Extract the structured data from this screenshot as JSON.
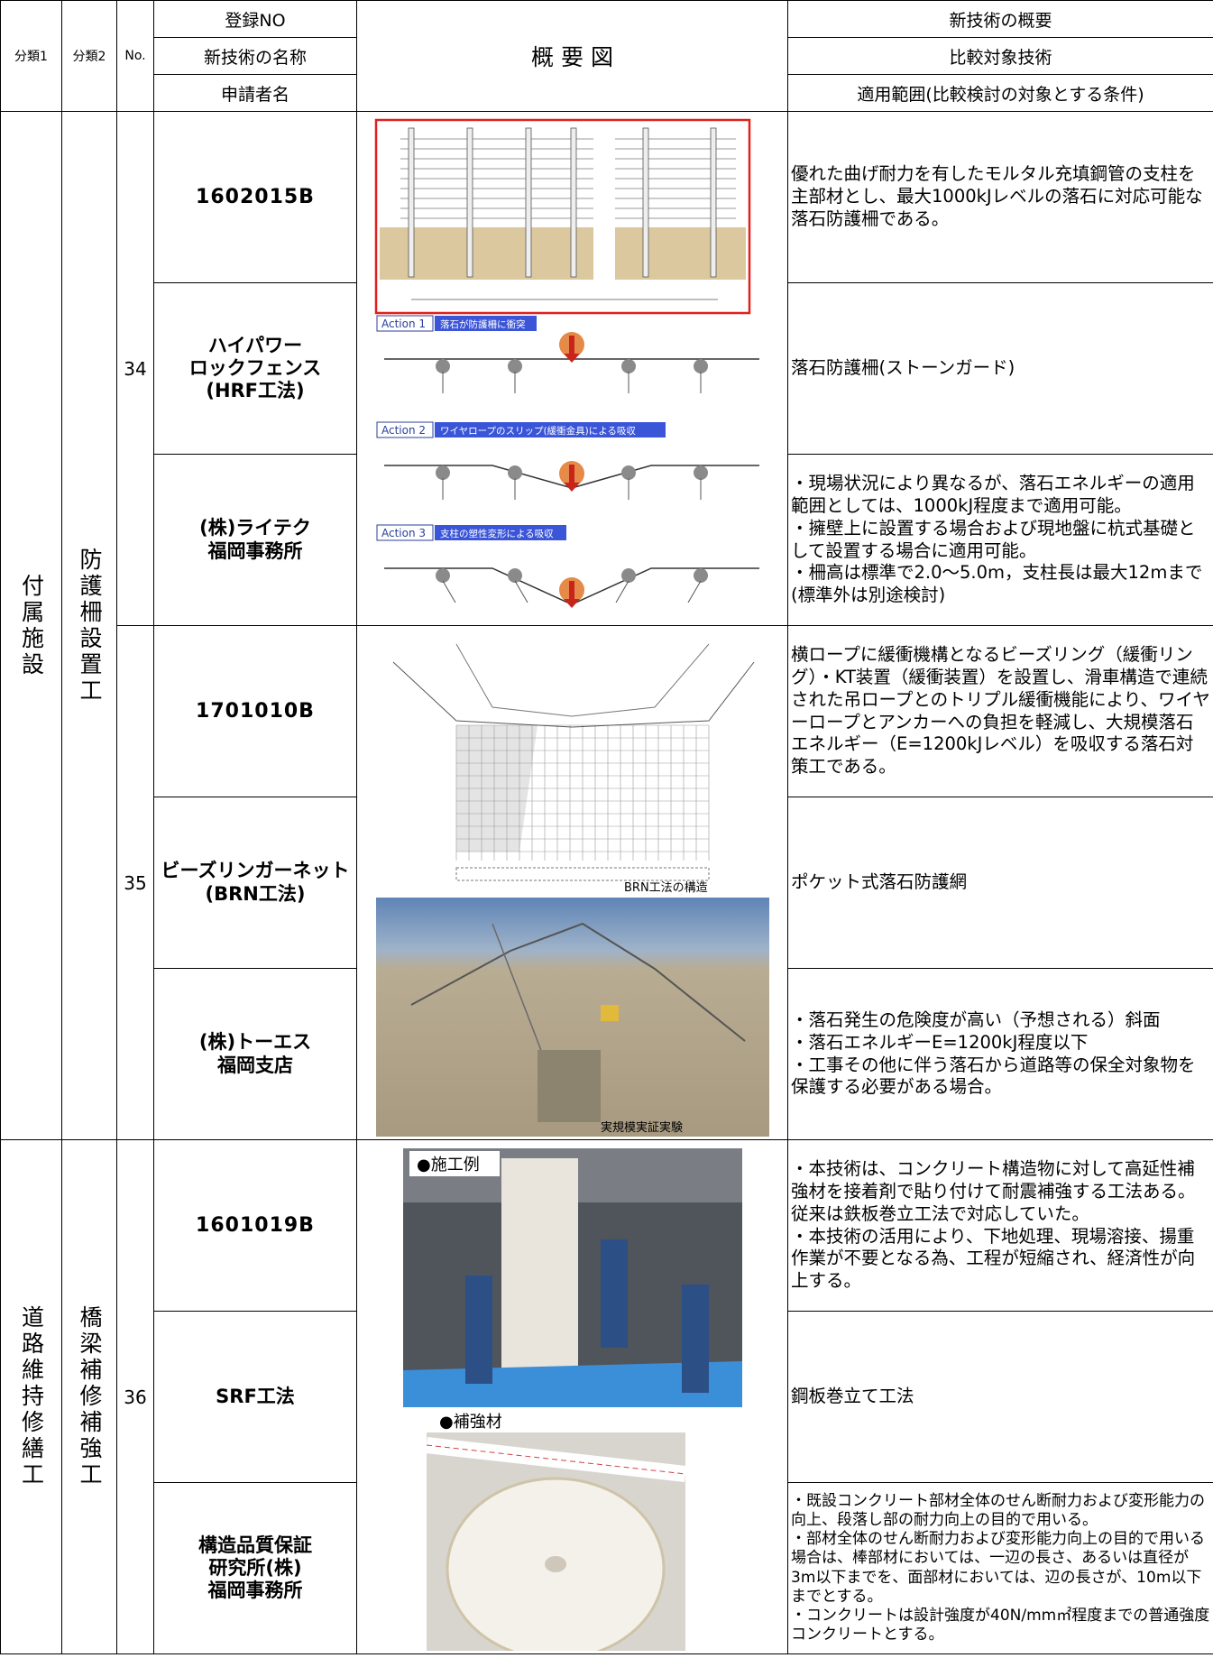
{
  "header": {
    "cat1": "分類1",
    "cat2": "分類2",
    "no": "No.",
    "reg_no": "登録NO",
    "name": "新技術の名称",
    "applicant": "申請者名",
    "diagram": "概 要 図",
    "overview": "新技術の概要",
    "comparison": "比較対象技術",
    "scope": "適用範囲(比較検討の対象とする条件)"
  },
  "sections": [
    {
      "cat1": "付属施設",
      "cat2": "防護柵設置工",
      "entries": [
        {
          "no": 34,
          "reg_no": "1602015B",
          "name": [
            "ハイパワー",
            "ロックフェンス",
            "(HRF工法)"
          ],
          "applicant": [
            "(株)ライテク",
            "福岡事務所"
          ],
          "overview": [
            "優れた曲げ耐力を有したモルタル充填鋼管の支柱を主部材とし、最大1000kJレベルの落石に対応可能な落石防護柵である。"
          ],
          "comparison": [
            "落石防護柵(ストーンガード)"
          ],
          "scope": [
            "・現場状況により異なるが、落石エネルギーの適用範囲としては、1000kJ程度まで適用可能。",
            "・擁壁上に設置する場合および現地盤に杭式基礎として設置する場合に適用可能。",
            "・柵高は標準で2.0～5.0m，支柱長は最大12mまで(標準外は別途検討)"
          ],
          "diagram": {
            "actions": [
              {
                "label": "Action 1",
                "text": "落石が防護柵に衝突"
              },
              {
                "label": "Action 2",
                "text": "ワイヤロープのスリップ(緩衝金具)による吸収"
              },
              {
                "label": "Action 3",
                "text": "支柱の塑性変形による吸収"
              }
            ]
          }
        },
        {
          "no": 35,
          "reg_no": "1701010B",
          "name": [
            "ビーズリンガーネット",
            "(BRN工法)"
          ],
          "applicant": [
            "(株)トーエス",
            "福岡支店"
          ],
          "overview": [
            "横ロープに緩衝機構となるビーズリング（緩衝リング）・KT装置（緩衝装置）を設置し、滑車構造で連続された吊ロープとのトリプル緩衝機能により、ワイヤーロープとアンカーへの負担を軽減し、大規模落石エネルギー（E=1200kJレベル）を吸収する落石対策工である。"
          ],
          "comparison": [
            "ポケット式落石防護網"
          ],
          "scope": [
            "・落石発生の危険度が高い（予想される）斜面",
            "・落石エネルギーE=1200kJ程度以下",
            "・工事その他に伴う落石から道路等の保全対象物を保護する必要がある場合。"
          ],
          "diagram": {
            "captions": [
              "BRN工法の構造",
              "実規模実証実験"
            ]
          }
        }
      ]
    },
    {
      "cat1": "道路維持修繕工",
      "cat2": "橋梁補修補強工",
      "entries": [
        {
          "no": 36,
          "reg_no": "1601019B",
          "name": [
            "SRF工法"
          ],
          "applicant": [
            "構造品質保証",
            "研究所(株)",
            "福岡事務所"
          ],
          "overview": [
            "・本技術は、コンクリート構造物に対して高延性補強材を接着剤で貼り付けて耐震補強する工法ある。従来は鉄板巻立工法で対応していた。",
            "・本技術の活用により、下地処理、現場溶接、揚重作業が不要となる為、工程が短縮され、経済性が向上する。"
          ],
          "comparison": [
            "鋼板巻立て工法"
          ],
          "scope": [
            "・既設コンクリート部材全体のせん断耐力および変形能力の向上、段落し部の耐力向上の目的で用いる。",
            "・部材全体のせん断耐力および変形能力向上の目的で用いる場合は、棒部材においては、一辺の長さ、あるいは直径が3m以下までを、面部材においては、辺の長さが、10m以下までとする。",
            "・コンクリートは設計強度が40N/mm㎡程度までの普通強度コンクリートとする。"
          ],
          "diagram": {
            "captions": [
              "●施工例",
              "●補強材"
            ]
          }
        }
      ]
    }
  ]
}
